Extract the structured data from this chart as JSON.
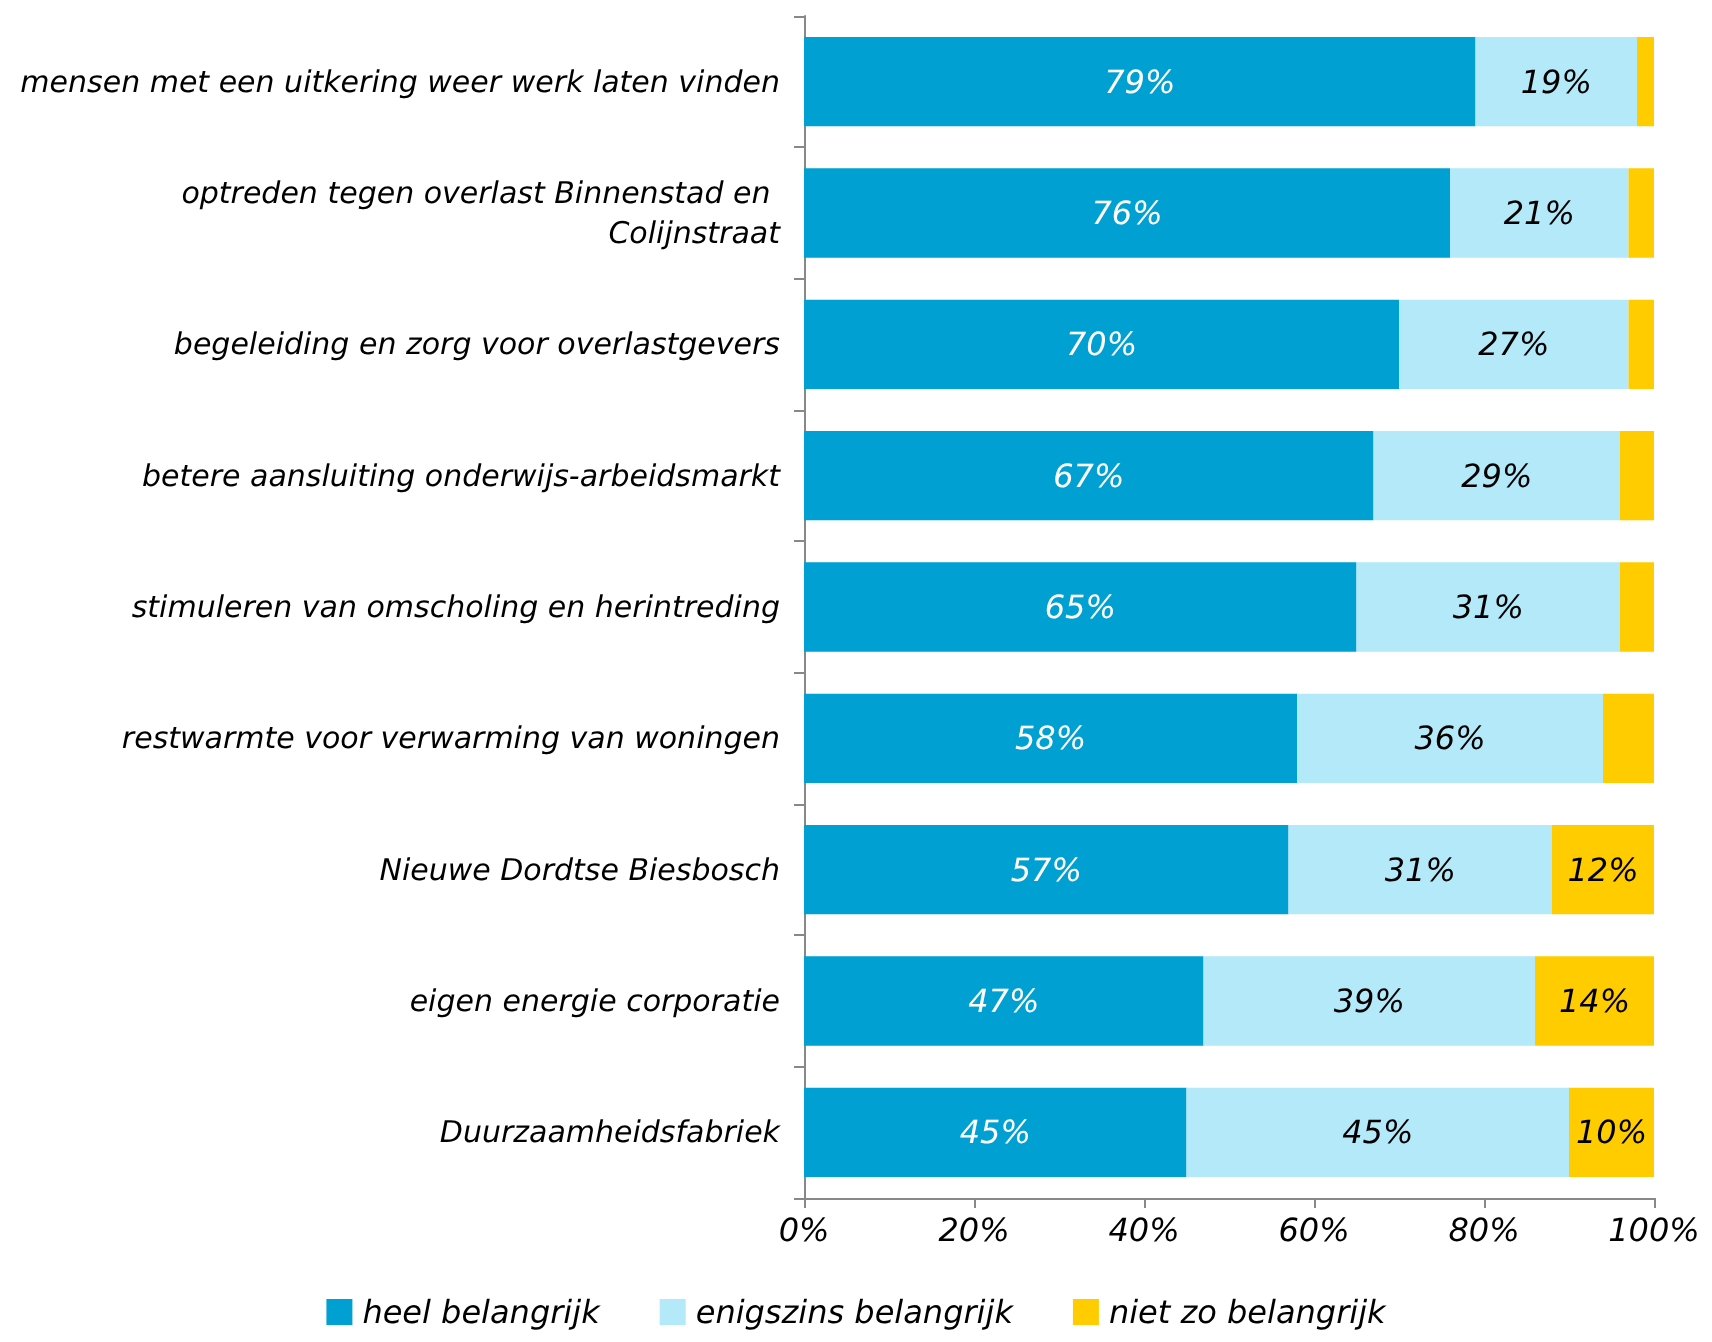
{
  "chart_data": {
    "type": "bar",
    "orientation": "horizontal",
    "stacked": true,
    "categories": [
      "mensen met een uitkering weer werk laten vinden",
      "optreden tegen overlast Binnenstad en Colijnstraat",
      "begeleiding en zorg voor overlastgevers",
      "betere aansluiting onderwijs-arbeidsmarkt",
      "stimuleren van omscholing en herintreding",
      "restwarmte voor verwarming van woningen",
      "Nieuwe Dordtse Biesbosch",
      "eigen energie corporatie",
      "Duurzaamheidsfabriek"
    ],
    "series": [
      {
        "name": "heel belangrijk",
        "color": "#00a0d2",
        "values": [
          79,
          76,
          70,
          67,
          65,
          58,
          57,
          47,
          45
        ],
        "value_labels": [
          "79%",
          "76%",
          "70%",
          "67%",
          "65%",
          "58%",
          "57%",
          "47%",
          "45%"
        ]
      },
      {
        "name": "enigszins belangrijk",
        "color": "#b3e9f9",
        "values": [
          19,
          21,
          27,
          29,
          31,
          36,
          31,
          39,
          45
        ],
        "value_labels": [
          "19%",
          "21%",
          "27%",
          "29%",
          "31%",
          "36%",
          "31%",
          "39%",
          "45%"
        ]
      },
      {
        "name": "niet zo belangrijk",
        "color": "#ffcc00",
        "values": [
          2,
          3,
          3,
          4,
          4,
          6,
          12,
          14,
          10
        ],
        "value_labels": [
          null,
          null,
          null,
          null,
          null,
          null,
          "12%",
          "14%",
          "10%"
        ]
      }
    ],
    "xlim": [
      0,
      100
    ],
    "xticks": [
      {
        "value": 0,
        "label": "0%"
      },
      {
        "value": 20,
        "label": "20%"
      },
      {
        "value": 40,
        "label": "40%"
      },
      {
        "value": 60,
        "label": "60%"
      },
      {
        "value": 80,
        "label": "80%"
      },
      {
        "value": 100,
        "label": "100%"
      }
    ],
    "grid": false,
    "legend": "bottom"
  }
}
